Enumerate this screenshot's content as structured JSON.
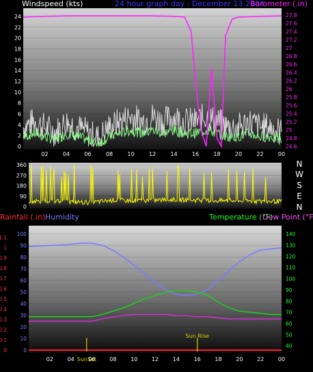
{
  "header": {
    "wind_label": "Windspeed (kts)",
    "title": "24 hour graph day : December 13 2004",
    "baro_label": "Barometer (.in)"
  },
  "compass": [
    "N",
    "W",
    "S",
    "E",
    "N"
  ],
  "lower_header": {
    "rain_label": "Rainfall (.in)",
    "humidity_label": "Humidity",
    "temp_label": "Temperature (°F)",
    "dew_label": "Dew Point (°F)"
  },
  "colors": {
    "wind": "#e0e0e0",
    "wind_avg": "#88ff88",
    "baro": "#ff22ff",
    "direction": "#ffff00",
    "humidity": "#7b7bff",
    "temperature": "#22cc22",
    "dewpoint": "#cc33cc",
    "rain": "#ff2020",
    "sun": "#d6d600",
    "title": "#3a3aff",
    "rain_axis": "#ff3030",
    "temp_axis": "#22ff22",
    "dew_axis": "#ff55ff"
  },
  "chart_data": [
    {
      "type": "line",
      "title": "24 hour graph day : December 13 2004",
      "x_ticks": [
        "02",
        "04",
        "06",
        "08",
        "10",
        "12",
        "14",
        "16",
        "18",
        "20",
        "22",
        "00"
      ],
      "xlim": [
        0,
        24
      ],
      "left_axis": {
        "label": "Windspeed (kts)",
        "ylim": [
          0,
          25
        ],
        "ticks": [
          0,
          2,
          4,
          6,
          8,
          10,
          12,
          14,
          16,
          18,
          20,
          22,
          24
        ]
      },
      "right_axis": {
        "label": "Barometer (.in)",
        "ylim": [
          24.6,
          27.9
        ],
        "ticks": [
          24.6,
          24.8,
          25,
          25.2,
          25.4,
          25.6,
          25.8,
          26,
          26.2,
          26.4,
          26.6,
          26.8,
          27,
          27.2,
          27.4,
          27.6,
          27.8
        ]
      },
      "series": [
        {
          "name": "Windspeed",
          "axis": "left",
          "x": [
            0,
            1,
            2,
            3,
            4,
            5,
            6,
            7,
            8,
            9,
            10,
            11,
            12,
            13,
            14,
            15,
            16,
            17,
            18,
            19,
            20,
            21,
            22,
            23,
            24
          ],
          "values": [
            3,
            4,
            3,
            2,
            4,
            3,
            2,
            1,
            3,
            4,
            5,
            4,
            5,
            4,
            5,
            4,
            4,
            5,
            4,
            3,
            3,
            4,
            3,
            3,
            2
          ]
        },
        {
          "name": "Barometer",
          "axis": "right",
          "x": [
            0,
            2,
            4,
            6,
            8,
            10,
            12,
            14,
            15,
            15.6,
            16,
            16.5,
            17,
            17.5,
            18,
            18.4,
            18.8,
            19.4,
            20,
            22,
            24
          ],
          "values": [
            27.75,
            27.77,
            27.78,
            27.78,
            27.78,
            27.78,
            27.78,
            27.77,
            27.75,
            27.4,
            26.2,
            25.0,
            24.6,
            26.5,
            24.8,
            24.6,
            27.3,
            27.7,
            27.75,
            27.77,
            27.78
          ]
        }
      ]
    },
    {
      "type": "line",
      "x_ticks": [
        "02",
        "04",
        "06",
        "08",
        "10",
        "12",
        "14",
        "16",
        "18",
        "20",
        "22",
        "00"
      ],
      "xlim": [
        0,
        24
      ],
      "left_axis": {
        "ylim": [
          0,
          360
        ],
        "ticks": [
          0,
          90,
          180,
          270,
          360
        ]
      },
      "right_axis": {
        "labels": [
          "N",
          "W",
          "S",
          "E",
          "N"
        ]
      },
      "series": [
        {
          "name": "Wind direction",
          "x": [
            0,
            2,
            4,
            6,
            8,
            10,
            12,
            14,
            16,
            18,
            20,
            22,
            24
          ],
          "values": [
            45,
            45,
            40,
            35,
            55,
            50,
            55,
            60,
            55,
            50,
            50,
            45,
            45
          ]
        }
      ]
    },
    {
      "type": "line",
      "x_ticks": [
        "02",
        "04",
        "06",
        "08",
        "10",
        "12",
        "14",
        "16",
        "18",
        "20",
        "22",
        "00"
      ],
      "xlim": [
        0,
        24
      ],
      "left_axis_rain": {
        "label": "Rainfall (.in)",
        "ylim": [
          0,
          1.2
        ],
        "ticks": [
          0,
          0.1,
          0.2,
          0.3,
          0.4,
          0.5,
          0.6,
          0.7,
          0.8,
          0.9,
          1,
          1.1
        ]
      },
      "left_axis_humidity": {
        "label": "Humidity",
        "ylim": [
          0,
          100
        ],
        "ticks": [
          0,
          10,
          20,
          30,
          40,
          50,
          60,
          70,
          80,
          90,
          100
        ]
      },
      "right_axis": {
        "label": "Temperature (°F)",
        "ylim": [
          30,
          145
        ],
        "ticks": [
          40,
          50,
          60,
          70,
          80,
          90,
          100,
          110,
          120,
          130,
          140
        ]
      },
      "annotations": [
        {
          "text": "SunSet",
          "x": 5.5
        },
        {
          "text": "Sun Rise",
          "x": 16
        }
      ],
      "series": [
        {
          "name": "Humidity",
          "axis": "humidity",
          "x": [
            0,
            2,
            4,
            5,
            6,
            7,
            8,
            9,
            10,
            11,
            12,
            13,
            14,
            15,
            16,
            17,
            18,
            19,
            20,
            21,
            22,
            23,
            24
          ],
          "values": [
            89,
            90,
            91,
            92,
            92,
            90,
            86,
            80,
            73,
            66,
            58,
            52,
            48,
            47,
            48,
            52,
            60,
            68,
            76,
            82,
            86,
            87,
            88
          ]
        },
        {
          "name": "Temperature",
          "axis": "right",
          "x": [
            0,
            2,
            4,
            5,
            6,
            7,
            8,
            9,
            10,
            11,
            12,
            13,
            14,
            15,
            16,
            17,
            18,
            19,
            20,
            21,
            22,
            23,
            24
          ],
          "values": [
            66,
            66,
            66,
            66,
            66,
            68,
            71,
            74,
            78,
            82,
            85,
            88,
            89,
            89,
            88,
            85,
            79,
            74,
            71,
            70,
            69,
            68,
            68
          ]
        },
        {
          "name": "Dew Point",
          "axis": "right",
          "x": [
            0,
            2,
            4,
            5,
            6,
            7,
            8,
            9,
            10,
            11,
            12,
            13,
            14,
            15,
            16,
            17,
            18,
            19,
            20,
            21,
            22,
            23,
            24
          ],
          "values": [
            62,
            62,
            62,
            62,
            62,
            64,
            66,
            67,
            68,
            68,
            68,
            68,
            67,
            67,
            66,
            66,
            65,
            64,
            64,
            64,
            64,
            64,
            64
          ]
        },
        {
          "name": "Rainfall",
          "axis": "rain",
          "x": [
            0,
            24
          ],
          "values": [
            0,
            0
          ]
        }
      ]
    }
  ]
}
